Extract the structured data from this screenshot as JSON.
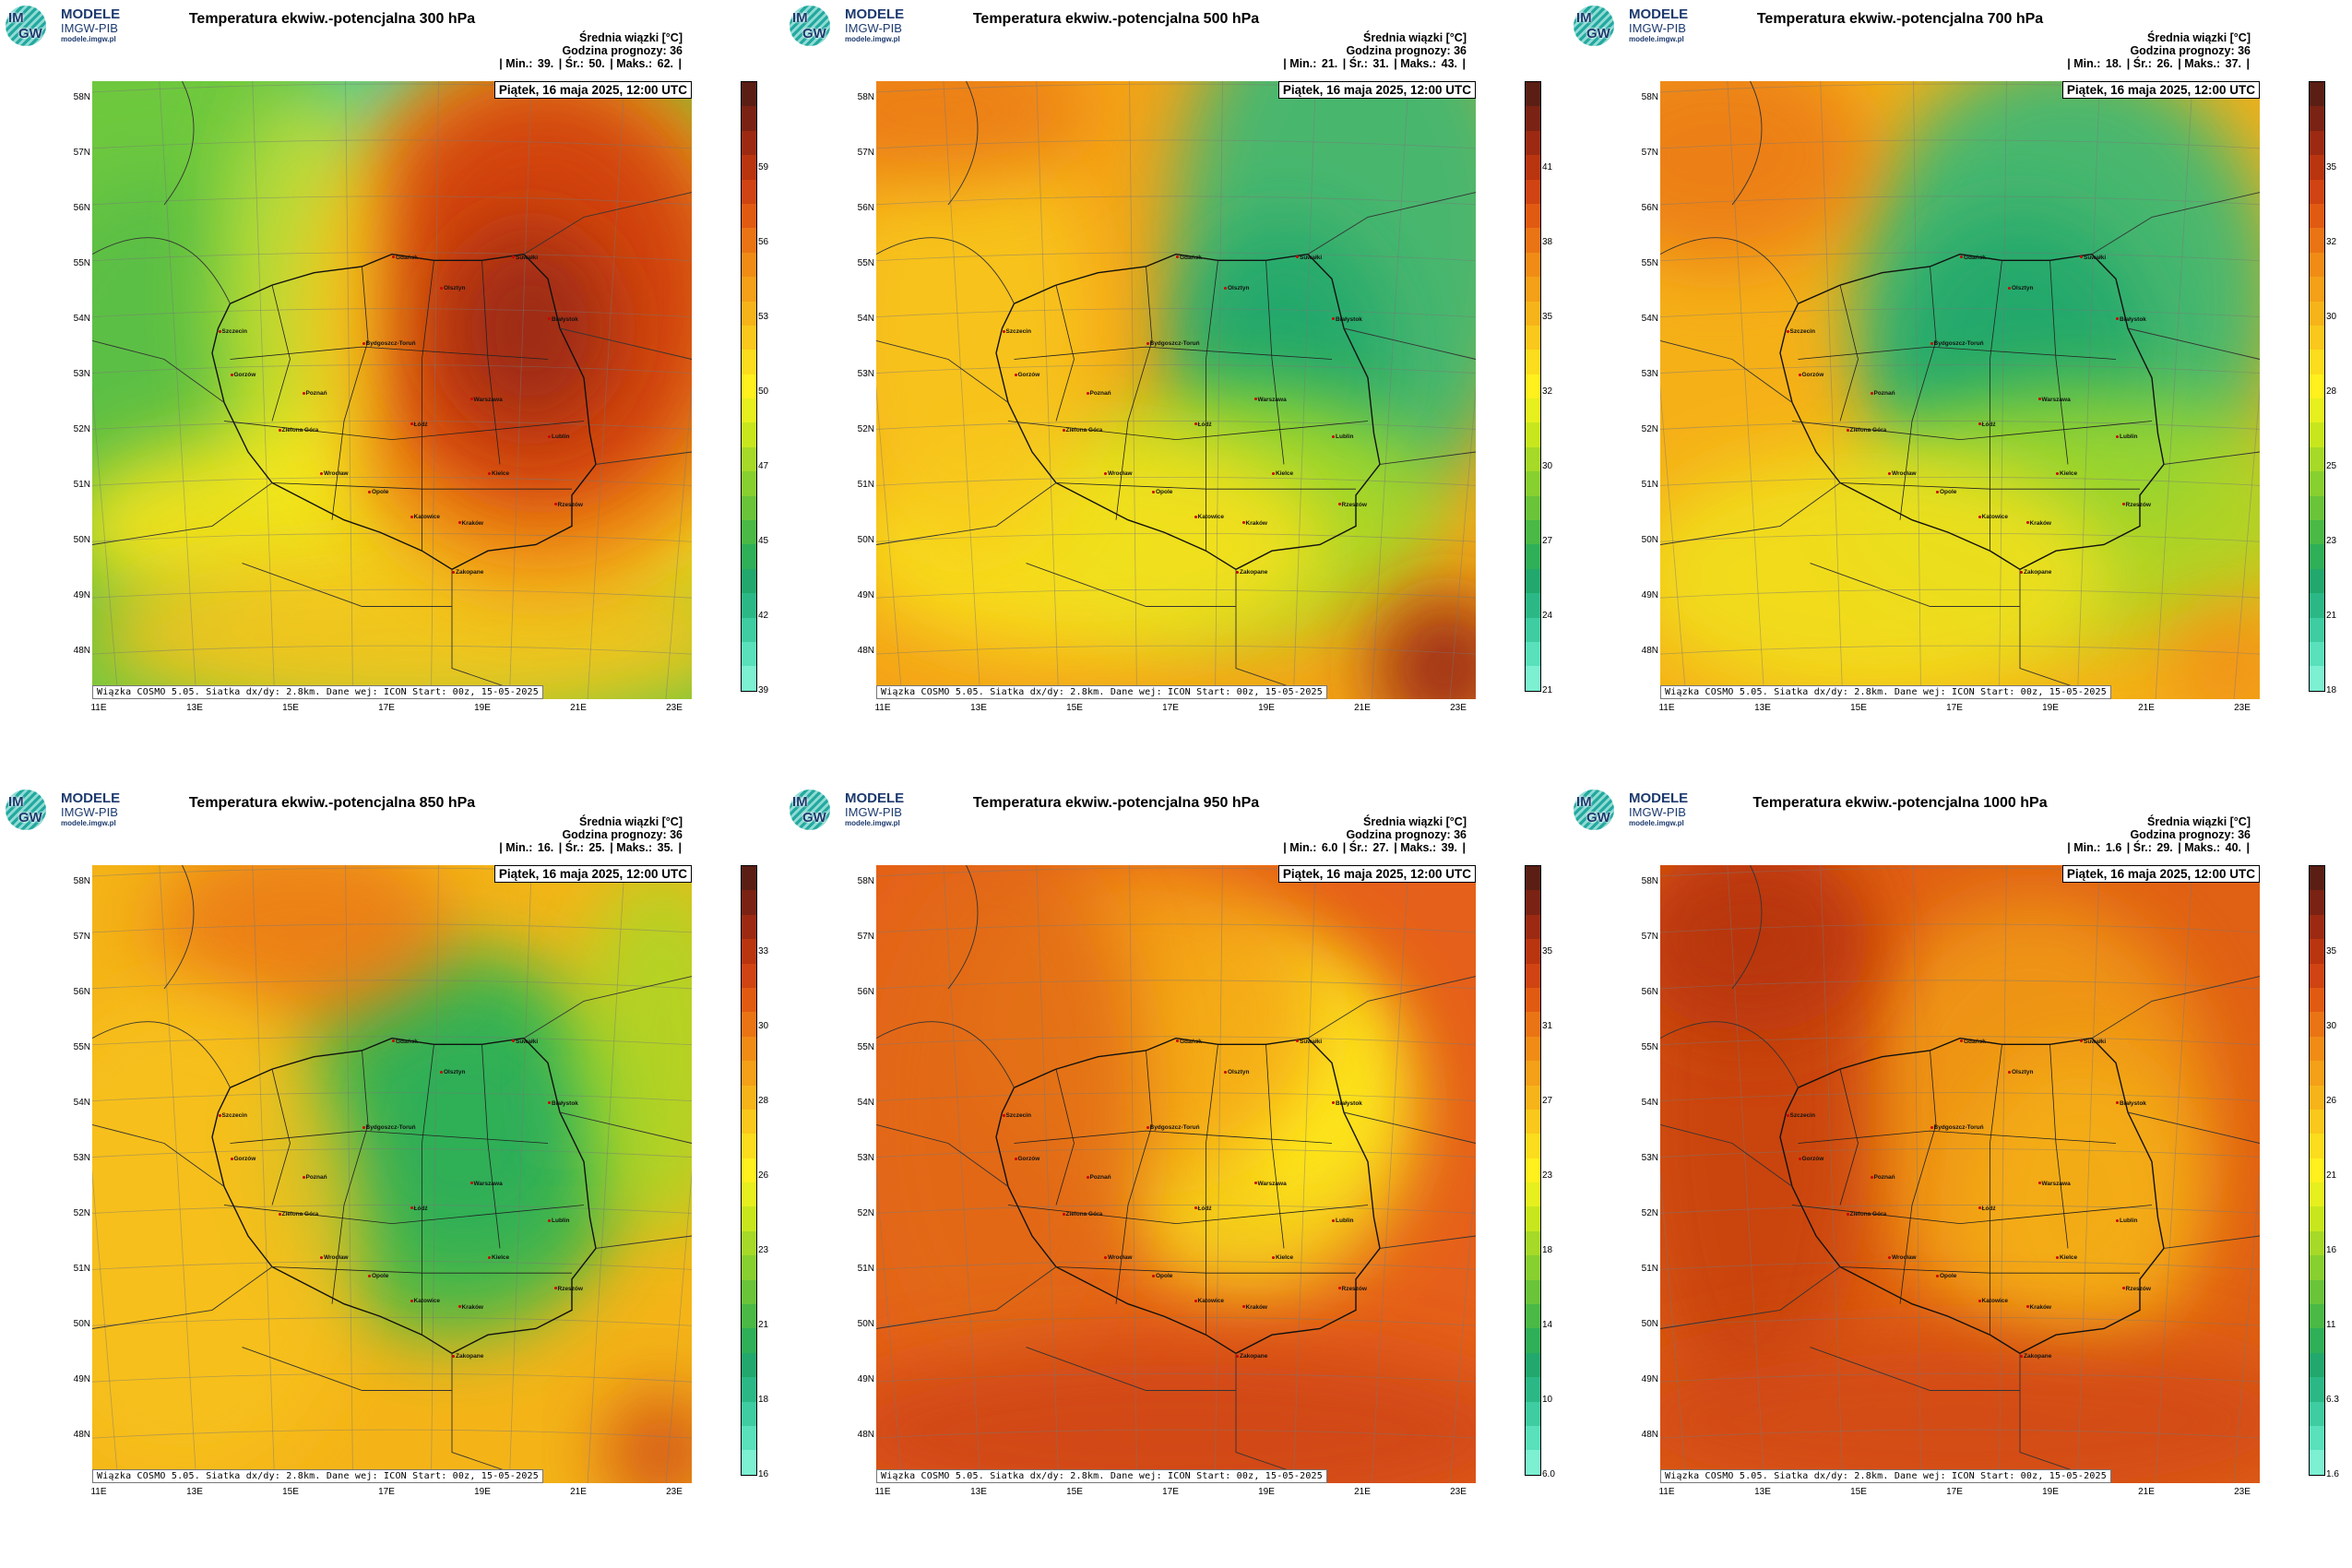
{
  "header": {
    "logo_text_line1": "MODELE",
    "logo_text_line2": "IMGW-PIB",
    "logo_text_line3": "modele.imgw.pl",
    "logo_mark_top": "IM",
    "logo_mark_bottom": "GW"
  },
  "common": {
    "mean_label": "Średnia wiązki [°C]",
    "forecast_hour": "Godzina prognozy: 36",
    "date": "Piątek, 16 maja 2025, 12:00 UTC",
    "footer": "Wiązka COSMO 5.05. Siatka dx/dy: 2.8km. Dane wej: ICON Start: 00z, 15-05-2025",
    "lat_labels": [
      "58N",
      "57N",
      "56N",
      "55N",
      "54N",
      "53N",
      "52N",
      "51N",
      "50N",
      "49N",
      "48N"
    ],
    "lon_labels": [
      "11E",
      "13E",
      "15E",
      "17E",
      "19E",
      "21E",
      "23E"
    ],
    "cities": [
      {
        "name": "Gdańsk"
      },
      {
        "name": "Olsztyn"
      },
      {
        "name": "Suwałki"
      },
      {
        "name": "Szczecin"
      },
      {
        "name": "Białystok"
      },
      {
        "name": "Bydgoszcz-Toruń"
      },
      {
        "name": "Gorzów"
      },
      {
        "name": "Poznań"
      },
      {
        "name": "Warszawa"
      },
      {
        "name": "Zielona Góra"
      },
      {
        "name": "Łódź"
      },
      {
        "name": "Lublin"
      },
      {
        "name": "Wrocław"
      },
      {
        "name": "Kielce"
      },
      {
        "name": "Opole"
      },
      {
        "name": "Rzeszów"
      },
      {
        "name": "Katowice"
      },
      {
        "name": "Kraków"
      },
      {
        "name": "Zakopane"
      }
    ]
  },
  "panels": [
    {
      "title": "Temperatura ekwiw.-potencjalna 300 hPa",
      "stats": {
        "min_label": "| Min.:",
        "min": "39.",
        "mean_label": "| Śr.:",
        "mean": "50.",
        "max_label": "| Maks.:",
        "max": "62.",
        "end": "|"
      },
      "colorbar_ticks": [
        "59",
        "56",
        "53",
        "50",
        "47",
        "45",
        "42",
        "39"
      ],
      "field": "p300"
    },
    {
      "title": "Temperatura ekwiw.-potencjalna 500 hPa",
      "stats": {
        "min_label": "| Min.:",
        "min": "21.",
        "mean_label": "| Śr.:",
        "mean": "31.",
        "max_label": "| Maks.:",
        "max": "43.",
        "end": "|"
      },
      "colorbar_ticks": [
        "41",
        "38",
        "35",
        "32",
        "30",
        "27",
        "24",
        "21"
      ],
      "field": "p500"
    },
    {
      "title": "Temperatura ekwiw.-potencjalna 700 hPa",
      "stats": {
        "min_label": "| Min.:",
        "min": "18.",
        "mean_label": "| Śr.:",
        "mean": "26.",
        "max_label": "| Maks.:",
        "max": "37.",
        "end": "|"
      },
      "colorbar_ticks": [
        "35",
        "32",
        "30",
        "28",
        "25",
        "23",
        "21",
        "18"
      ],
      "field": "p700"
    },
    {
      "title": "Temperatura ekwiw.-potencjalna 850 hPa",
      "stats": {
        "min_label": "| Min.:",
        "min": "16.",
        "mean_label": "| Śr.:",
        "mean": "25.",
        "max_label": "| Maks.:",
        "max": "35.",
        "end": "|"
      },
      "colorbar_ticks": [
        "33",
        "30",
        "28",
        "26",
        "23",
        "21",
        "18",
        "16"
      ],
      "field": "p850"
    },
    {
      "title": "Temperatura ekwiw.-potencjalna 950 hPa",
      "stats": {
        "min_label": "| Min.:",
        "min": "6.0",
        "mean_label": "| Śr.:",
        "mean": "27.",
        "max_label": "| Maks.:",
        "max": "39.",
        "end": "|"
      },
      "colorbar_ticks": [
        "35",
        "31",
        "27",
        "23",
        "18",
        "14",
        "10",
        "6.0"
      ],
      "field": "p950"
    },
    {
      "title": "Temperatura ekwiw.-potencjalna 1000 hPa",
      "stats": {
        "min_label": "| Min.:",
        "min": "1.6",
        "mean_label": "| Śr.:",
        "mean": "29.",
        "max_label": "| Maks.:",
        "max": "40.",
        "end": "|"
      },
      "colorbar_ticks": [
        "35",
        "30",
        "26",
        "21",
        "16",
        "11",
        "6.3",
        "1.6"
      ],
      "field": "p1000"
    }
  ],
  "colors": {
    "colorbar": [
      "#5a1e14",
      "#7a2214",
      "#9c2a12",
      "#b8350f",
      "#cf4412",
      "#e05a12",
      "#ea7414",
      "#f08c16",
      "#f4a018",
      "#f7b41a",
      "#fac81c",
      "#fcdc1e",
      "#fff01e",
      "#e6f01e",
      "#c8e61e",
      "#a6d928",
      "#88cf30",
      "#6ac43a",
      "#4ab946",
      "#2faf58",
      "#22a86c",
      "#2cb886",
      "#3fcca0",
      "#5ae0ba",
      "#7df0d2"
    ]
  }
}
